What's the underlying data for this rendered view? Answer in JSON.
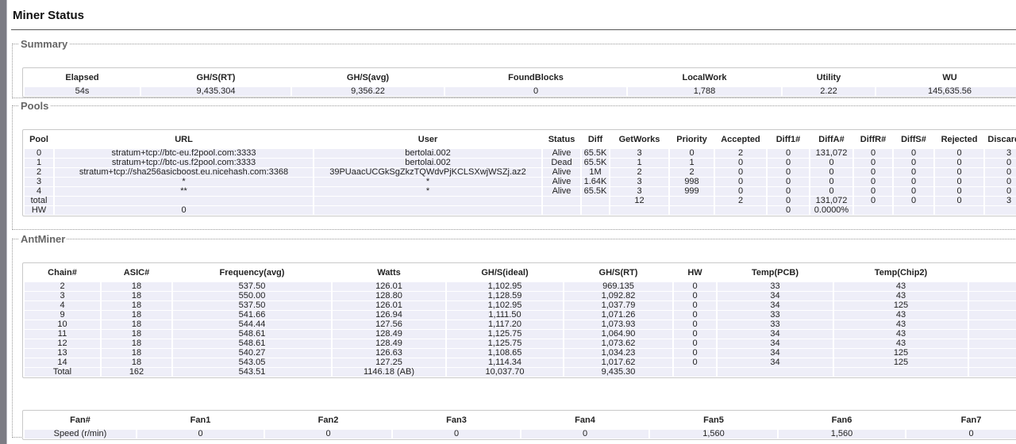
{
  "title": "Miner Status",
  "summary": {
    "legend": "Summary",
    "headers": [
      "Elapsed",
      "GH/S(RT)",
      "GH/S(avg)",
      "FoundBlocks",
      "LocalWork",
      "Utility",
      "WU"
    ],
    "rows": [
      [
        "54s",
        "9,435.304",
        "9,356.22",
        "0",
        "1,788",
        "2.22",
        "145,635.56"
      ]
    ]
  },
  "pools": {
    "legend": "Pools",
    "headers": [
      "Pool",
      "URL",
      "User",
      "Status",
      "Diff",
      "GetWorks",
      "Priority",
      "Accepted",
      "Diff1#",
      "DiffA#",
      "DiffR#",
      "DiffS#",
      "Rejected",
      "Discarded"
    ],
    "rows": [
      [
        "0",
        "stratum+tcp://btc-eu.f2pool.com:3333",
        "bertolai.002",
        "Alive",
        "65.5K",
        "3",
        "0",
        "2",
        "0",
        "131,072",
        "0",
        "0",
        "0",
        "3"
      ],
      [
        "1",
        "stratum+tcp://btc-us.f2pool.com:3333",
        "bertolai.002",
        "Dead",
        "65.5K",
        "1",
        "1",
        "0",
        "0",
        "0",
        "0",
        "0",
        "0",
        "0"
      ],
      [
        "2",
        "stratum+tcp://sha256asicboost.eu.nicehash.com:3368",
        "39PUaacUCGkSgZkzTQWdvPjKCLSXwjWSZj.az2",
        "Alive",
        "1M",
        "2",
        "2",
        "0",
        "0",
        "0",
        "0",
        "0",
        "0",
        "0"
      ],
      [
        "3",
        "*",
        "*",
        "Alive",
        "1.64K",
        "3",
        "998",
        "0",
        "0",
        "0",
        "0",
        "0",
        "0",
        "0"
      ],
      [
        "4",
        "**",
        "*",
        "Alive",
        "65.5K",
        "3",
        "999",
        "0",
        "0",
        "0",
        "0",
        "0",
        "0",
        "0"
      ],
      [
        "total",
        null,
        null,
        null,
        null,
        "12",
        null,
        "2",
        "0",
        "131,072",
        "0",
        "0",
        "0",
        "3"
      ],
      [
        "HW",
        "0",
        null,
        null,
        null,
        null,
        null,
        null,
        "0",
        "0.0000%",
        null,
        null,
        null,
        null
      ]
    ]
  },
  "antminer": {
    "legend": "AntMiner",
    "chains": {
      "headers": [
        "Chain#",
        "ASIC#",
        "Frequency(avg)",
        "Watts",
        "GH/S(ideal)",
        "GH/S(RT)",
        "HW",
        "Temp(PCB)",
        "Temp(Chip2)",
        null
      ],
      "rows": [
        [
          "2",
          "18",
          "537.50",
          "126.01",
          "1,102.95",
          "969.135",
          "0",
          "33",
          "43",
          null
        ],
        [
          "3",
          "18",
          "550.00",
          "128.80",
          "1,128.59",
          "1,092.82",
          "0",
          "34",
          "43",
          null
        ],
        [
          "4",
          "18",
          "537.50",
          "126.01",
          "1,102.95",
          "1,037.79",
          "0",
          "34",
          "125",
          null
        ],
        [
          "9",
          "18",
          "541.66",
          "126.94",
          "1,111.50",
          "1,071.26",
          "0",
          "33",
          "43",
          null
        ],
        [
          "10",
          "18",
          "544.44",
          "127.56",
          "1,117.20",
          "1,073.93",
          "0",
          "33",
          "43",
          null
        ],
        [
          "11",
          "18",
          "548.61",
          "128.49",
          "1,125.75",
          "1,064.90",
          "0",
          "34",
          "43",
          null
        ],
        [
          "12",
          "18",
          "548.61",
          "128.49",
          "1,125.75",
          "1,073.62",
          "0",
          "34",
          "43",
          null
        ],
        [
          "13",
          "18",
          "540.27",
          "126.63",
          "1,108.65",
          "1,034.23",
          "0",
          "34",
          "125",
          null
        ],
        [
          "14",
          "18",
          "543.05",
          "127.25",
          "1,114.34",
          "1,017.62",
          "0",
          "34",
          "125",
          null
        ],
        [
          "Total",
          "162",
          "543.51",
          "1146.18 (AB)",
          "10,037.70",
          "9,435.30",
          null,
          null,
          null,
          null
        ]
      ]
    },
    "fans": {
      "headers": [
        "Fan#",
        "Fan1",
        "Fan2",
        "Fan3",
        "Fan4",
        "Fan5",
        "Fan6",
        "Fan7"
      ],
      "rows": [
        [
          "Speed (r/min)",
          "0",
          "0",
          "0",
          "0",
          "1,560",
          "1,560",
          "0"
        ]
      ]
    }
  }
}
